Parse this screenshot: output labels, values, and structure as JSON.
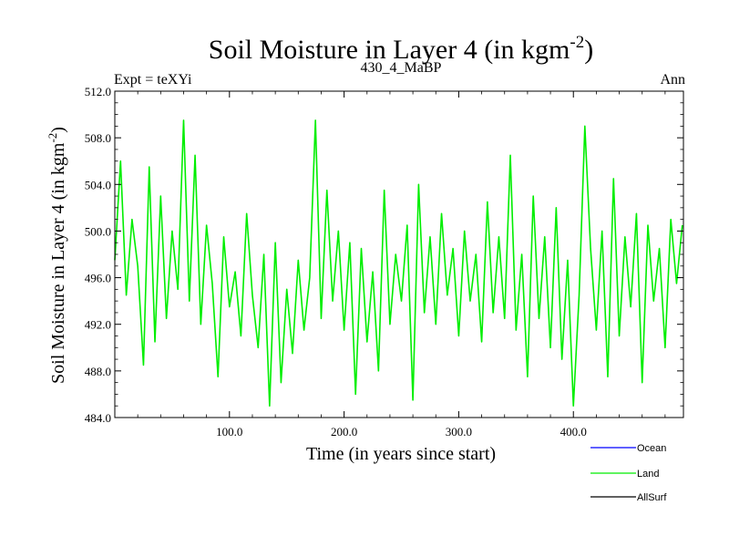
{
  "chart_data": {
    "type": "line",
    "title": "Soil Moisture in Layer 4 (in kgm",
    "title_sup": "-2",
    "title_end": ")",
    "subtitle_left": "Expt = teXYi",
    "subtitle_center": "430_4_MaBP",
    "subtitle_right": "Ann",
    "xlabel": "Time (in years since start)",
    "ylabel": "Soil Moisture in Layer 4 (in kgm",
    "ylabel_sup": "-2",
    "ylabel_end": ")",
    "xlim": [
      0,
      496
    ],
    "ylim": [
      484.0,
      512.0
    ],
    "x_ticks": [
      100,
      200,
      300,
      400
    ],
    "x_tick_labels": [
      "100.0",
      "200.0",
      "300.0",
      "400.0"
    ],
    "y_ticks": [
      484,
      488,
      492,
      496,
      500,
      504,
      508,
      512
    ],
    "y_tick_labels": [
      "484.0",
      "488.0",
      "492.0",
      "496.0",
      "500.0",
      "504.0",
      "508.0",
      "512.0"
    ],
    "legend_position": "bottom-right",
    "colors": {
      "Ocean": "#0000ff",
      "Land": "#00ee00",
      "AllSurf": "#000000"
    },
    "series": [
      {
        "name": "Ocean",
        "color": "#0000ff",
        "x": [],
        "values": []
      },
      {
        "name": "Land",
        "color": "#00ee00",
        "x": [
          0,
          5,
          10,
          15,
          20,
          25,
          30,
          35,
          40,
          45,
          50,
          55,
          60,
          65,
          70,
          75,
          80,
          85,
          90,
          95,
          100,
          105,
          110,
          115,
          120,
          125,
          130,
          135,
          140,
          145,
          150,
          155,
          160,
          165,
          170,
          175,
          180,
          185,
          190,
          195,
          200,
          205,
          210,
          215,
          220,
          225,
          230,
          235,
          240,
          245,
          250,
          255,
          260,
          265,
          270,
          275,
          280,
          285,
          290,
          295,
          300,
          305,
          310,
          315,
          320,
          325,
          330,
          335,
          340,
          345,
          350,
          355,
          360,
          365,
          370,
          375,
          380,
          385,
          390,
          395,
          400,
          405,
          410,
          415,
          420,
          425,
          430,
          435,
          440,
          445,
          450,
          455,
          460,
          465,
          470,
          475,
          480,
          485,
          490,
          495
        ],
        "values": [
          497.5,
          506.0,
          494.5,
          501.0,
          497.0,
          488.5,
          505.5,
          490.5,
          503.0,
          492.5,
          500.0,
          495.0,
          509.5,
          494.0,
          506.5,
          492.0,
          500.5,
          495.5,
          487.5,
          499.5,
          493.5,
          496.5,
          491.0,
          501.5,
          494.5,
          490.0,
          498.0,
          485.0,
          499.0,
          487.0,
          495.0,
          489.5,
          497.5,
          491.5,
          496.0,
          509.5,
          492.5,
          503.5,
          494.0,
          500.0,
          491.5,
          499.0,
          486.0,
          498.5,
          490.5,
          496.5,
          488.0,
          503.5,
          492.0,
          498.0,
          494.0,
          500.5,
          485.5,
          504.0,
          493.0,
          499.5,
          492.0,
          501.5,
          494.5,
          498.5,
          491.0,
          500.0,
          494.0,
          498.0,
          490.5,
          502.5,
          493.0,
          499.5,
          492.5,
          506.5,
          491.5,
          498.0,
          487.5,
          503.0,
          492.5,
          499.5,
          490.0,
          502.0,
          489.0,
          497.5,
          485.0,
          494.5,
          509.0,
          498.5,
          491.5,
          500.0,
          487.5,
          504.5,
          491.0,
          499.5,
          493.5,
          501.5,
          487.0,
          500.5,
          494.0,
          498.5,
          490.0,
          501.0,
          495.5,
          500.5
        ]
      },
      {
        "name": "AllSurf",
        "color": "#000000",
        "x": [],
        "values": []
      }
    ]
  }
}
